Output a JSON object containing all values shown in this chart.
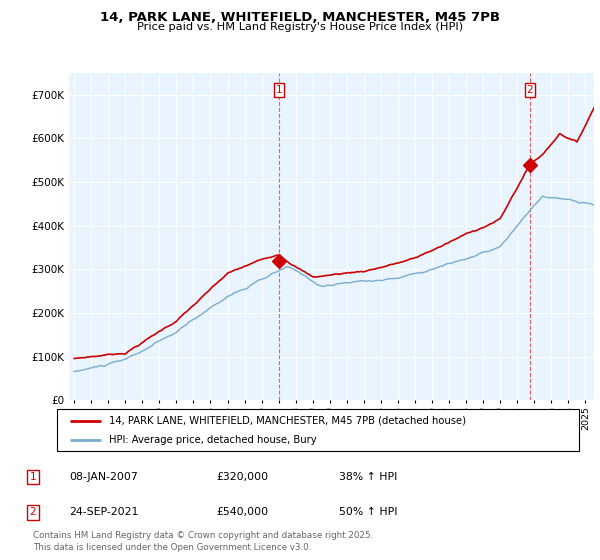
{
  "title_line1": "14, PARK LANE, WHITEFIELD, MANCHESTER, M45 7PB",
  "title_line2": "Price paid vs. HM Land Registry's House Price Index (HPI)",
  "legend_line1": "14, PARK LANE, WHITEFIELD, MANCHESTER, M45 7PB (detached house)",
  "legend_line2": "HPI: Average price, detached house, Bury",
  "annotation1_date": "08-JAN-2007",
  "annotation1_price": "£320,000",
  "annotation1_hpi": "38% ↑ HPI",
  "annotation2_date": "24-SEP-2021",
  "annotation2_price": "£540,000",
  "annotation2_hpi": "50% ↑ HPI",
  "footer": "Contains HM Land Registry data © Crown copyright and database right 2025.\nThis data is licensed under the Open Government Licence v3.0.",
  "red_color": "#cc0000",
  "blue_color": "#7aacce",
  "blue_fill": "#ddeeff",
  "grid_color": "#cccccc",
  "background_color": "#ffffff",
  "ylim_max": 750000,
  "ylim_min": 0,
  "xmin": 1995.0,
  "xmax": 2025.5
}
